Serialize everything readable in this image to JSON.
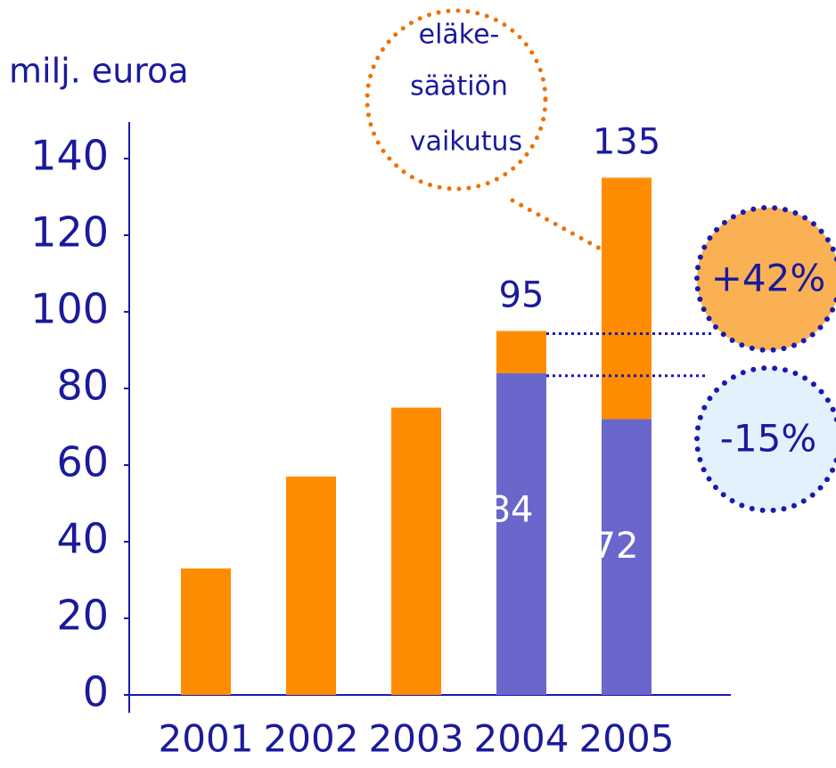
{
  "chart_data": {
    "type": "stacked_bar",
    "y_label": "milj. euroa",
    "categories": [
      "2001",
      "2002",
      "2003",
      "2004",
      "2005"
    ],
    "series": [
      {
        "color": "#6a67cc",
        "values": [
          null,
          null,
          null,
          84,
          72
        ]
      },
      {
        "color": "#ff8c00",
        "values": [
          33,
          57,
          75,
          11,
          63
        ]
      }
    ],
    "totals": [
      null,
      null,
      null,
      95,
      135
    ],
    "ylim": [
      0,
      140
    ],
    "yticks": [
      0,
      20,
      40,
      60,
      80,
      100,
      120,
      140
    ],
    "callout": [
      "eläke-",
      "säätiön",
      "vaikutus"
    ],
    "annotations": [
      "+42%",
      "-15%"
    ]
  }
}
